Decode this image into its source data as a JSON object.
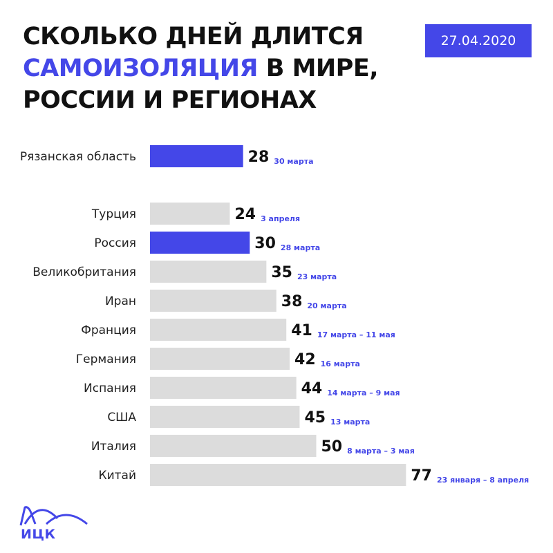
{
  "header": {
    "title_line1": "СКОЛЬКО ДНЕЙ ДЛИТСЯ",
    "title_line2_highlight": "САМОИЗОЛЯЦИЯ",
    "title_line2_rest": " В МИРЕ,",
    "title_line3": "РОССИИ И РЕГИОНАХ",
    "date": "27.04.2020"
  },
  "logo": {
    "text": "ИЦК",
    "icon": "hills-logo-icon"
  },
  "colors": {
    "accent": "#4447e8",
    "bar_gray": "#dcdcdc",
    "value_text": "#111111",
    "date_text": "#4447e8"
  },
  "chart_data": {
    "type": "bar",
    "orientation": "horizontal",
    "categories": [
      "Рязанская область",
      "Турция",
      "Россия",
      "Великобритания",
      "Иран",
      "Франция",
      "Германия",
      "Испания",
      "США",
      "Италия",
      "Китай"
    ],
    "values": [
      28,
      24,
      30,
      35,
      38,
      41,
      42,
      44,
      45,
      50,
      77
    ],
    "annotations": [
      "30 марта",
      "3 апреля",
      "28 марта",
      "23 марта",
      "20 марта",
      "17 марта – 11 мая",
      "16 марта",
      "14 марта – 9 мая",
      "13 марта",
      "8 марта – 3 мая",
      "23 января – 8 апреля"
    ],
    "highlighted": [
      "Рязанская область",
      "Россия"
    ],
    "grid": false,
    "legend": false
  }
}
